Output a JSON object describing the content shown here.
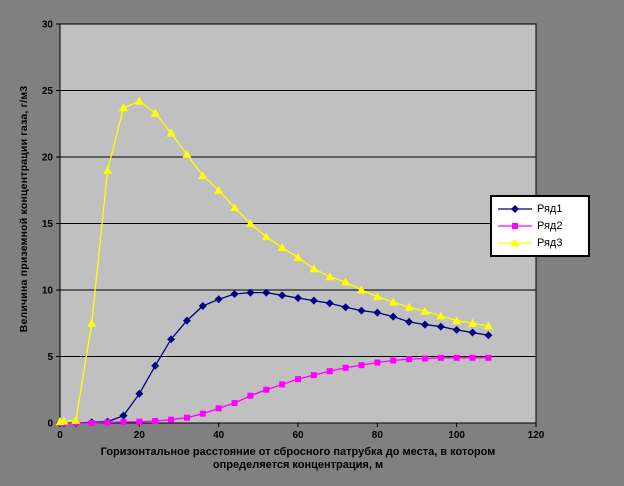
{
  "chart_data": {
    "type": "line",
    "title": "",
    "xlabel": "Горизонтальное расстояние от сбросного патрубка до места, в котором определяется концентрация, м",
    "xlabel_lines": [
      "Горизонтальное расстояние от сбросного патрубка до места, в котором",
      "определяется концентрация, м"
    ],
    "ylabel": "Величина приземной концентрации газа, г/м3",
    "xlim": [
      0,
      120
    ],
    "ylim": [
      0,
      30
    ],
    "x_ticks": [
      0,
      20,
      40,
      60,
      80,
      100,
      120
    ],
    "y_ticks": [
      0,
      5,
      10,
      15,
      20,
      25,
      30
    ],
    "grid": "horizontal",
    "legend_position": "right",
    "x": [
      0,
      1,
      4,
      8,
      12,
      16,
      20,
      24,
      28,
      32,
      36,
      40,
      44,
      48,
      52,
      56,
      60,
      64,
      68,
      72,
      76,
      80,
      84,
      88,
      92,
      96,
      100,
      104,
      108
    ],
    "series": [
      {
        "name": "Ряд1",
        "color": "#000080",
        "marker": "diamond",
        "values": [
          0,
          0,
          0,
          0.05,
          0.1,
          0.55,
          2.2,
          4.3,
          6.3,
          7.7,
          8.8,
          9.3,
          9.7,
          9.8,
          9.8,
          9.6,
          9.4,
          9.2,
          9.0,
          8.7,
          8.45,
          8.3,
          8.0,
          7.6,
          7.4,
          7.25,
          7.0,
          6.8,
          6.6
        ]
      },
      {
        "name": "Ряд2",
        "color": "#FF00FF",
        "marker": "square",
        "values": [
          0,
          0,
          0,
          0,
          0.05,
          0.08,
          0.1,
          0.15,
          0.25,
          0.4,
          0.7,
          1.1,
          1.5,
          2.05,
          2.5,
          2.9,
          3.3,
          3.6,
          3.9,
          4.15,
          4.35,
          4.55,
          4.7,
          4.8,
          4.85,
          4.9,
          4.9,
          4.9,
          4.9
        ]
      },
      {
        "name": "Ряд3",
        "color": "#FFFF00",
        "marker": "triangle",
        "values": [
          0.1,
          0.15,
          0.2,
          7.5,
          19.0,
          23.7,
          24.2,
          23.3,
          21.8,
          20.2,
          18.6,
          17.5,
          16.2,
          15.0,
          14.0,
          13.2,
          12.45,
          11.6,
          11.0,
          10.6,
          10.0,
          9.5,
          9.1,
          8.7,
          8.4,
          8.05,
          7.7,
          7.5,
          7.3
        ]
      }
    ],
    "colors": {
      "chart_background": "#808080",
      "plot_background": "#C0C0C0",
      "gridline": "#000000",
      "axis": "#000000",
      "legend_background": "#FFFFFF",
      "legend_border": "#000000",
      "text": "#000000"
    }
  }
}
